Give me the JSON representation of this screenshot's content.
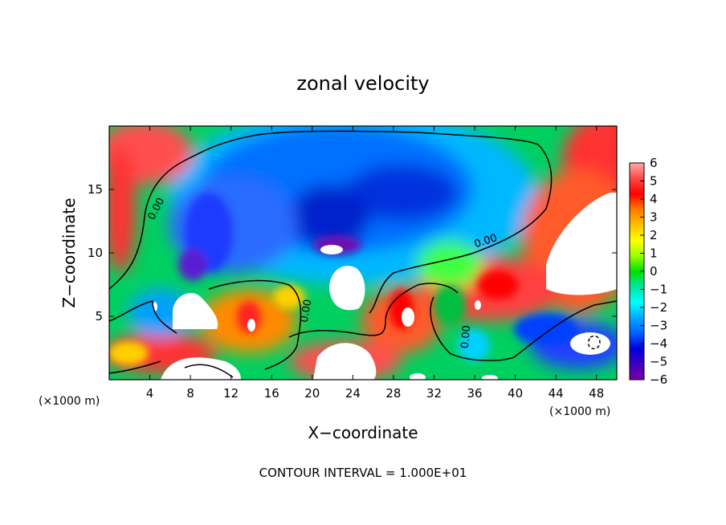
{
  "chart_data": {
    "type": "heatmap",
    "title": "zonal velocity",
    "xlabel": "X−coordinate",
    "ylabel": "Z−coordinate",
    "x_scale_note_left": "(×1000 m)",
    "x_scale_note_right": "(×1000 m)",
    "footer": "CONTOUR INTERVAL = 1.000E+01",
    "xlim": [
      0,
      50
    ],
    "ylim": [
      0,
      20
    ],
    "xticks": [
      4,
      8,
      12,
      16,
      20,
      24,
      28,
      32,
      36,
      40,
      44,
      48
    ],
    "yticks": [
      5,
      10,
      15
    ],
    "grid": false,
    "colorbar": {
      "min": -6,
      "max": 6,
      "ticks": [
        6,
        5,
        4,
        3,
        2,
        1,
        0,
        -1,
        -2,
        -3,
        -4,
        -5,
        -6
      ],
      "colors": [
        "#ffaaaa",
        "#ff4848",
        "#ff0000",
        "#ff7a00",
        "#ffc000",
        "#ffff00",
        "#9cff00",
        "#00e000",
        "#00e6a0",
        "#00ffff",
        "#00aaff",
        "#0060ff",
        "#0000dd",
        "#4000c0",
        "#7a00a0"
      ]
    },
    "contour_labels": [
      "0.00",
      "0.00",
      "0.00",
      "0.00"
    ],
    "features": [
      {
        "label": "weak westerly (red/pink) near surface and lateral boundaries",
        "approx_value": 5
      },
      {
        "label": "strong easterly core (dark blue) centered near x=20-24, z=10-15",
        "approx_value": -5
      },
      {
        "label": "positive lobes (white, >6) around x=10, x=22, x=45",
        "approx_value": 7
      }
    ]
  }
}
